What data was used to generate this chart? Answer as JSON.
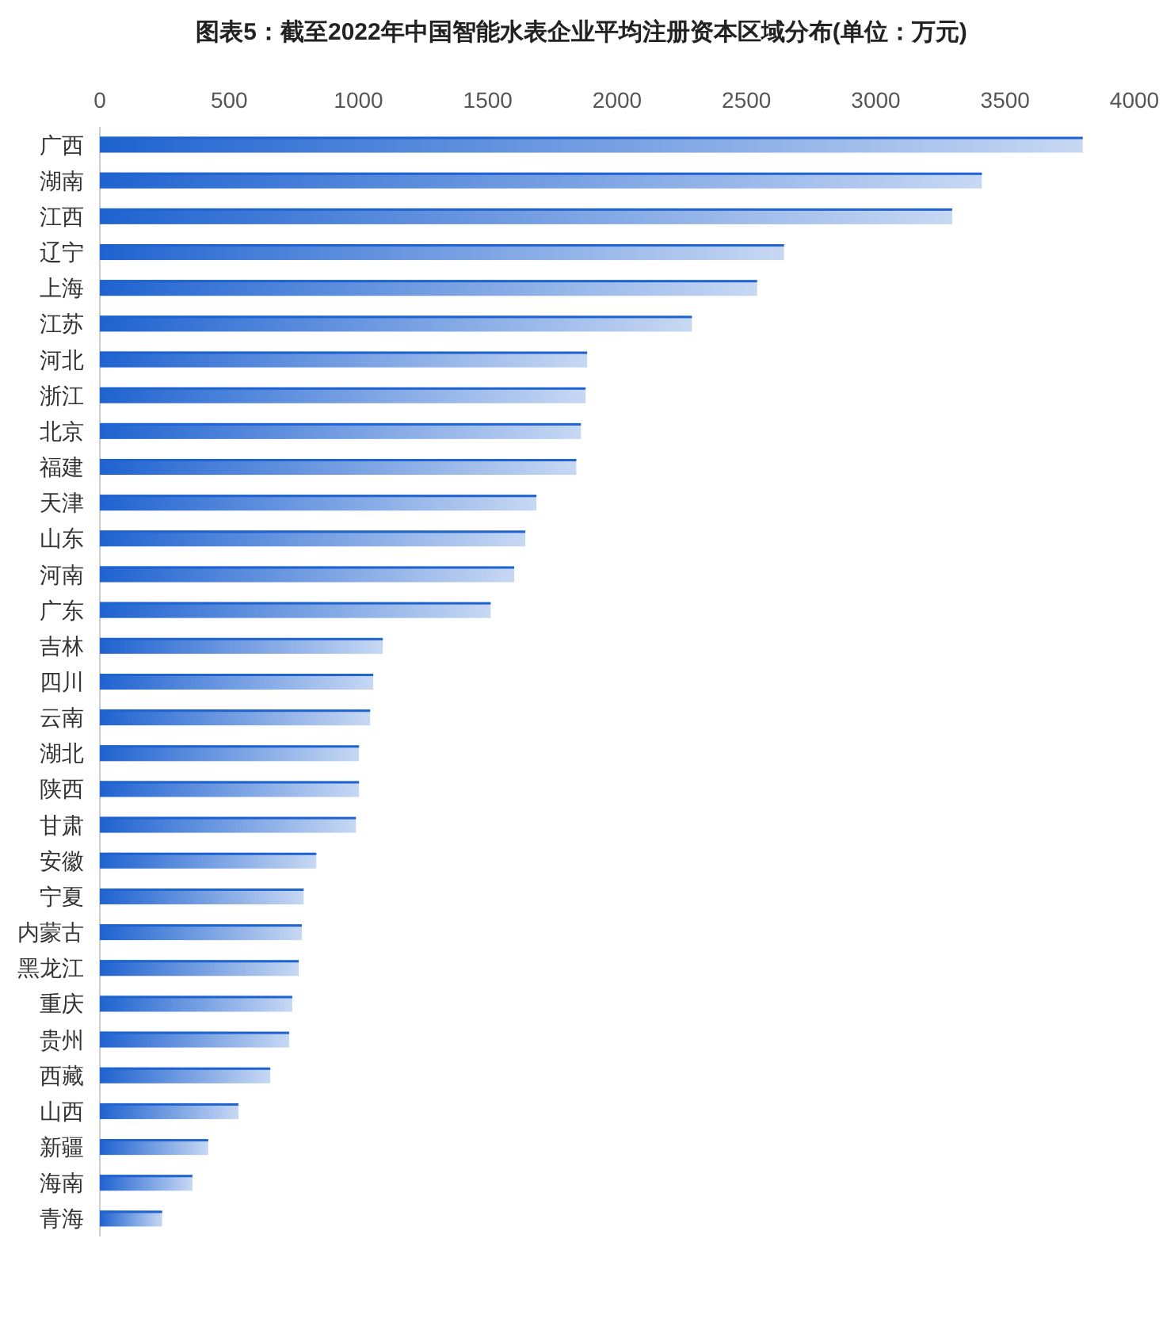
{
  "chart_data": {
    "type": "bar",
    "orientation": "horizontal",
    "title": "图表5：截至2022年中国智能水表企业平均注册资本区域分布(单位：万元)",
    "categories": [
      "广西",
      "湖南",
      "江西",
      "辽宁",
      "上海",
      "江苏",
      "河北",
      "浙江",
      "北京",
      "福建",
      "天津",
      "山东",
      "河南",
      "广东",
      "吉林",
      "四川",
      "云南",
      "湖北",
      "陕西",
      "甘肃",
      "安徽",
      "宁夏",
      "内蒙古",
      "黑龙江",
      "重庆",
      "贵州",
      "西藏",
      "山西",
      "新疆",
      "海南",
      "青海"
    ],
    "values": [
      3800,
      3410,
      3295,
      2645,
      2541,
      2289,
      1884,
      1878,
      1860,
      1842,
      1688,
      1645,
      1602,
      1511,
      1094,
      1057,
      1045,
      1002,
      1002,
      990,
      837,
      788,
      781,
      769,
      744,
      732,
      659,
      536,
      419,
      358,
      241
    ],
    "color": "#1f63d0",
    "xlim": [
      0,
      4000
    ],
    "xticks": [
      0,
      500,
      1000,
      1500,
      2000,
      2500,
      3000,
      3500,
      4000
    ]
  }
}
